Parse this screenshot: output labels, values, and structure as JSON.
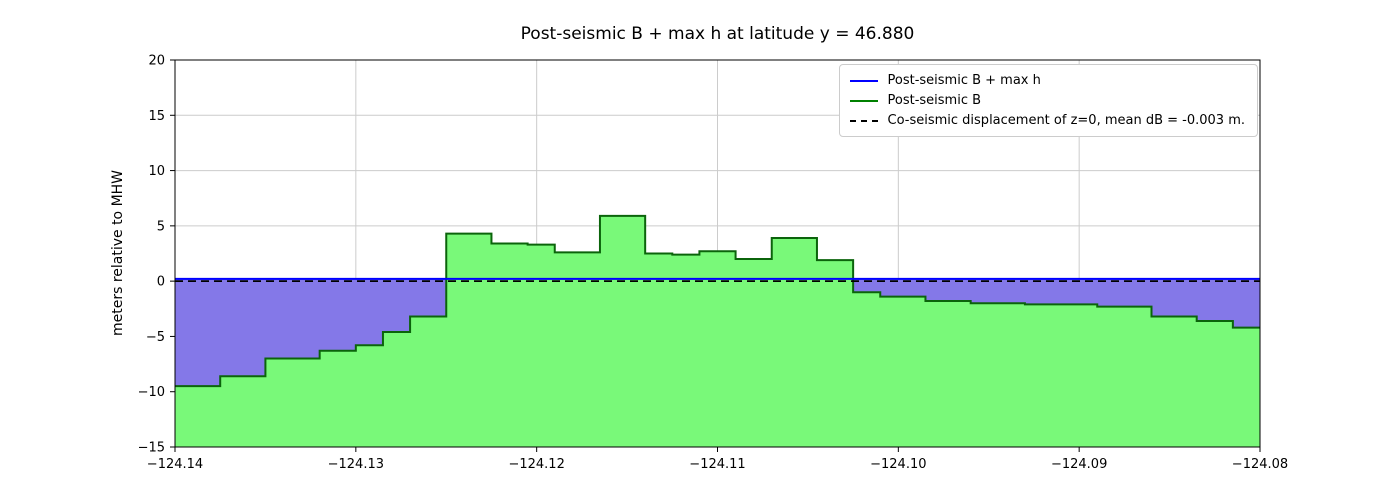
{
  "title": "Post-seismic B + max h at latitude y = 46.880",
  "y_axis_label": "meters relative to MHW",
  "legend": {
    "items": [
      {
        "label": "Post-seismic B + max h",
        "color": "#0000ff",
        "dashed": false
      },
      {
        "label": "Post-seismic B",
        "color": "#008000",
        "dashed": false
      },
      {
        "label": "Co-seismic displacement of z=0, mean dB = -0.003 m.",
        "color": "#000000",
        "dashed": true
      }
    ]
  },
  "chart_data": {
    "type": "area",
    "title": "Post-seismic B + max h at latitude y = 46.880",
    "xlabel": "",
    "ylabel": "meters relative to MHW",
    "xlim": [
      -124.14,
      -124.08
    ],
    "ylim": [
      -15,
      20
    ],
    "xticks": [
      -124.14,
      -124.13,
      -124.12,
      -124.11,
      -124.1,
      -124.09,
      -124.08
    ],
    "xtick_labels": [
      "−124.14",
      "−124.13",
      "−124.12",
      "−124.11",
      "−124.10",
      "−124.09",
      "−124.08"
    ],
    "yticks": [
      -15,
      -10,
      -5,
      0,
      5,
      10,
      15,
      20
    ],
    "ytick_labels": [
      "−15",
      "−10",
      "−5",
      "0",
      "5",
      "10",
      "15",
      "20"
    ],
    "grid": true,
    "legend_position": "upper right",
    "colors": {
      "water_fill": "#8478e8",
      "land_fill": "#79f979",
      "land_edge": "#0b640b",
      "b_plus_h_line": "#0000ff",
      "coseismic_line": "#000000",
      "grid": "#cccccc",
      "spine": "#000000"
    },
    "series": [
      {
        "name": "Post-seismic B + max h",
        "type": "hline",
        "value": 0.2,
        "style": "solid"
      },
      {
        "name": "Post-seismic B",
        "type": "steps",
        "x_end": -124.08,
        "steps": [
          [
            -124.14,
            -9.5
          ],
          [
            -124.1375,
            -8.6
          ],
          [
            -124.135,
            -7.0
          ],
          [
            -124.132,
            -6.3
          ],
          [
            -124.13,
            -5.8
          ],
          [
            -124.1285,
            -4.6
          ],
          [
            -124.127,
            -3.2
          ],
          [
            -124.125,
            4.3
          ],
          [
            -124.1225,
            3.4
          ],
          [
            -124.1205,
            3.3
          ],
          [
            -124.119,
            2.6
          ],
          [
            -124.1165,
            5.9
          ],
          [
            -124.114,
            2.5
          ],
          [
            -124.1125,
            2.4
          ],
          [
            -124.111,
            2.7
          ],
          [
            -124.109,
            2.0
          ],
          [
            -124.107,
            3.9
          ],
          [
            -124.1045,
            1.9
          ],
          [
            -124.1025,
            -1.0
          ],
          [
            -124.101,
            -1.4
          ],
          [
            -124.0985,
            -1.8
          ],
          [
            -124.096,
            -2.0
          ],
          [
            -124.093,
            -2.1
          ],
          [
            -124.089,
            -2.3
          ],
          [
            -124.086,
            -3.2
          ],
          [
            -124.0835,
            -3.6
          ],
          [
            -124.0815,
            -4.2
          ]
        ]
      },
      {
        "name": "Co-seismic displacement of z=0, mean dB = -0.003 m.",
        "type": "hline",
        "value": 0.0,
        "style": "dashed"
      }
    ]
  }
}
